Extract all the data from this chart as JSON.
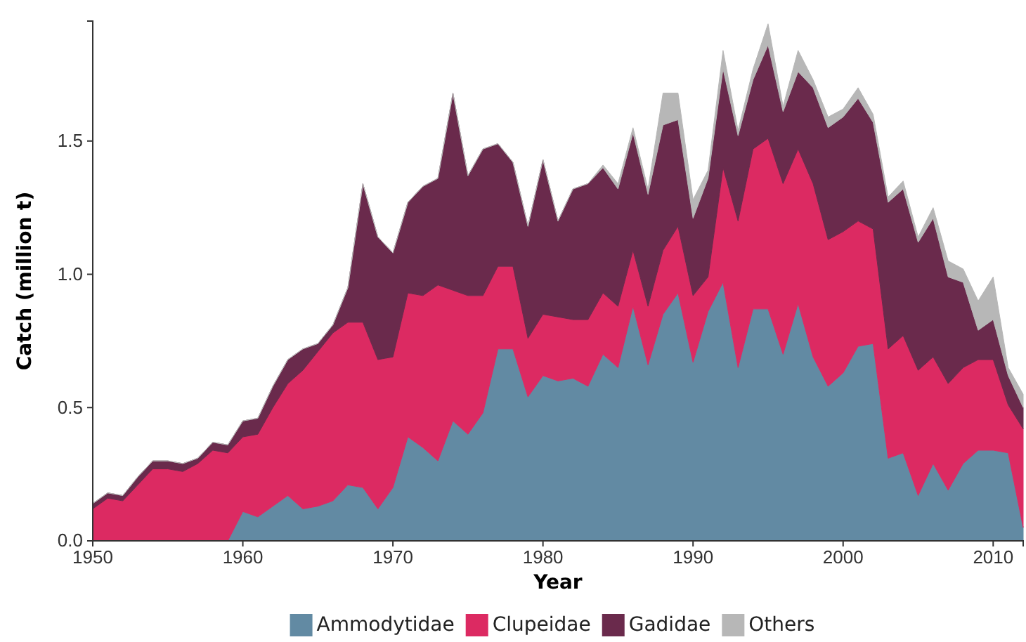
{
  "chart_data": {
    "type": "area",
    "stacked": true,
    "xlabel": "Year",
    "ylabel": "Catch (million t)",
    "x": [
      1950,
      1951,
      1952,
      1953,
      1954,
      1955,
      1956,
      1957,
      1958,
      1959,
      1960,
      1961,
      1962,
      1963,
      1964,
      1965,
      1966,
      1967,
      1968,
      1969,
      1970,
      1971,
      1972,
      1973,
      1974,
      1975,
      1976,
      1977,
      1978,
      1979,
      1980,
      1981,
      1982,
      1983,
      1984,
      1985,
      1986,
      1987,
      1988,
      1989,
      1990,
      1991,
      1992,
      1993,
      1994,
      1995,
      1996,
      1997,
      1998,
      1999,
      2000,
      2001,
      2002,
      2003,
      2004,
      2005,
      2006,
      2007,
      2008,
      2009,
      2010,
      2011,
      2012
    ],
    "xlim": [
      1950,
      2012
    ],
    "xticks": [
      1950,
      1960,
      1970,
      1980,
      1990,
      2000,
      2010
    ],
    "ylim": [
      0,
      1.95
    ],
    "yticks": [
      {
        "value": 0,
        "label": "0.0"
      },
      {
        "value": 0.5,
        "label": "0.5"
      },
      {
        "value": 1,
        "label": "1.0"
      },
      {
        "value": 1.5,
        "label": "1.5"
      }
    ],
    "grid": false,
    "legend": "bottom",
    "series": [
      {
        "name": "Ammodytidae",
        "color": "#628aa3",
        "values": [
          0,
          0,
          0,
          0,
          0,
          0,
          0,
          0,
          0,
          0,
          0.11,
          0.09,
          0.13,
          0.17,
          0.12,
          0.13,
          0.15,
          0.21,
          0.2,
          0.12,
          0.2,
          0.39,
          0.35,
          0.3,
          0.45,
          0.4,
          0.48,
          0.72,
          0.72,
          0.54,
          0.62,
          0.6,
          0.61,
          0.58,
          0.7,
          0.65,
          0.88,
          0.66,
          0.85,
          0.93,
          0.67,
          0.86,
          0.97,
          0.65,
          0.87,
          0.87,
          0.7,
          0.89,
          0.69,
          0.58,
          0.63,
          0.73,
          0.74,
          0.31,
          0.33,
          0.17,
          0.29,
          0.19,
          0.29,
          0.34,
          0.34,
          0.33,
          0.05
        ]
      },
      {
        "name": "Clupeidae",
        "color": "#dc2a62",
        "values": [
          0.12,
          0.16,
          0.15,
          0.21,
          0.27,
          0.27,
          0.26,
          0.29,
          0.34,
          0.33,
          0.28,
          0.31,
          0.37,
          0.42,
          0.52,
          0.58,
          0.63,
          0.61,
          0.62,
          0.56,
          0.49,
          0.54,
          0.57,
          0.66,
          0.49,
          0.52,
          0.44,
          0.31,
          0.31,
          0.22,
          0.23,
          0.24,
          0.22,
          0.25,
          0.23,
          0.23,
          0.21,
          0.22,
          0.24,
          0.25,
          0.25,
          0.13,
          0.43,
          0.55,
          0.6,
          0.64,
          0.64,
          0.58,
          0.65,
          0.55,
          0.53,
          0.47,
          0.43,
          0.41,
          0.44,
          0.47,
          0.4,
          0.4,
          0.36,
          0.34,
          0.34,
          0.18,
          0.37
        ]
      },
      {
        "name": "Gadidae",
        "color": "#6a2a4c",
        "values": [
          0.02,
          0.02,
          0.02,
          0.03,
          0.03,
          0.03,
          0.03,
          0.02,
          0.03,
          0.03,
          0.06,
          0.06,
          0.08,
          0.09,
          0.08,
          0.03,
          0.03,
          0.13,
          0.52,
          0.46,
          0.39,
          0.34,
          0.41,
          0.4,
          0.74,
          0.45,
          0.55,
          0.46,
          0.39,
          0.42,
          0.58,
          0.36,
          0.49,
          0.51,
          0.47,
          0.44,
          0.44,
          0.42,
          0.47,
          0.4,
          0.29,
          0.37,
          0.37,
          0.32,
          0.26,
          0.35,
          0.27,
          0.29,
          0.36,
          0.42,
          0.43,
          0.46,
          0.4,
          0.55,
          0.55,
          0.48,
          0.52,
          0.4,
          0.32,
          0.11,
          0.15,
          0.11,
          0.08
        ]
      },
      {
        "name": "Others",
        "color": "#b7b7b7",
        "values": [
          0,
          0,
          0,
          0,
          0,
          0,
          0,
          0,
          0,
          0,
          0,
          0,
          0,
          0,
          0,
          0,
          0,
          0,
          0,
          0,
          0,
          0,
          0,
          0,
          0,
          0,
          0,
          0,
          0,
          0,
          0,
          0,
          0,
          0,
          0.01,
          0.02,
          0.02,
          0.02,
          0.12,
          0.1,
          0.07,
          0.03,
          0.07,
          0.02,
          0.04,
          0.08,
          0.02,
          0.08,
          0.03,
          0.04,
          0.03,
          0.04,
          0.03,
          0.02,
          0.03,
          0.02,
          0.04,
          0.06,
          0.05,
          0.11,
          0.16,
          0.03,
          0.05
        ]
      }
    ]
  }
}
